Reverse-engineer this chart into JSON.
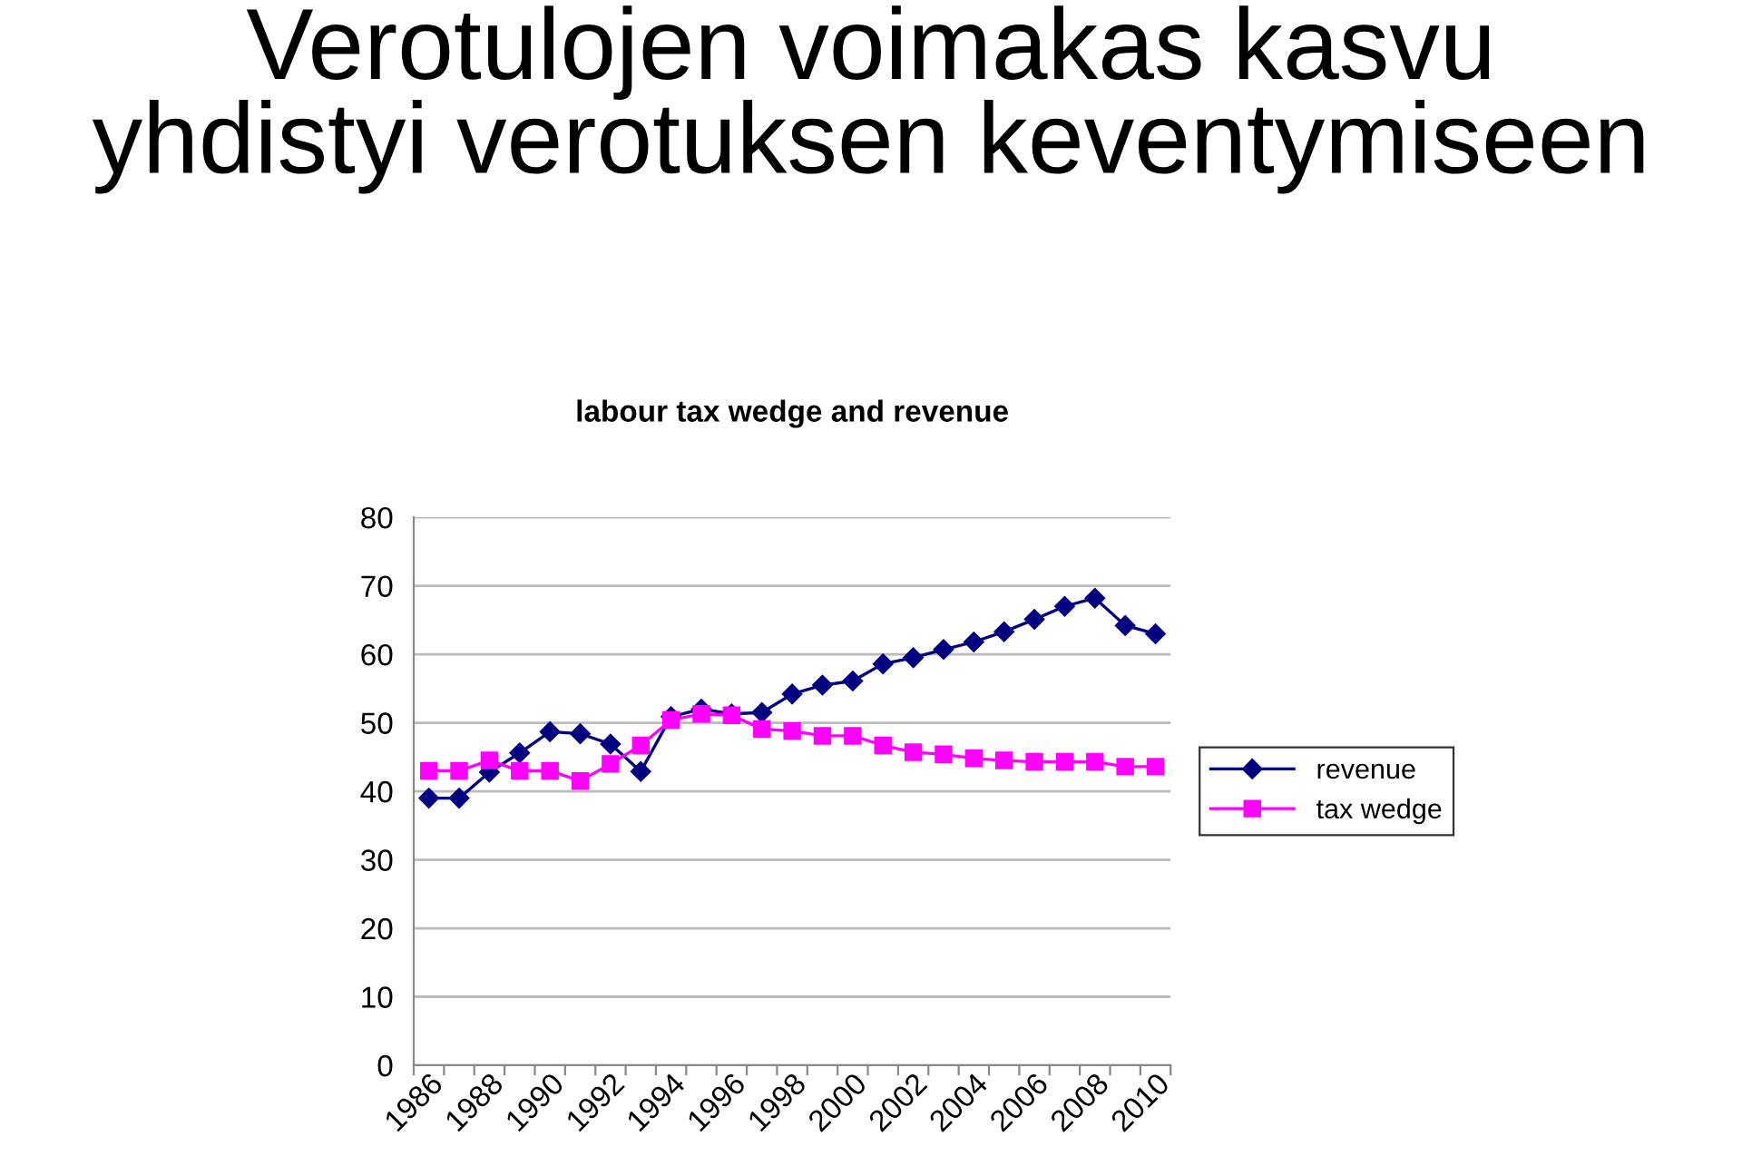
{
  "chart_data": {
    "type": "line",
    "title": "Verotulojen voimakas kasvu\nyhdistyi verotuksen keventymiseen",
    "subtitle": "labour tax wedge and revenue",
    "categories": [
      "1986",
      null,
      "1988",
      null,
      "1990",
      null,
      "1992",
      null,
      "1994",
      null,
      "1996",
      null,
      "1998",
      null,
      "2000",
      null,
      "2002",
      null,
      "2004",
      null,
      "2006",
      null,
      "2008",
      null,
      "2010"
    ],
    "series": [
      {
        "name": "revenue",
        "color": "#000080",
        "marker": "diamond",
        "values": [
          39.0,
          39.0,
          42.8,
          45.6,
          48.7,
          48.4,
          46.9,
          42.9,
          50.9,
          52.0,
          51.3,
          51.5,
          54.2,
          55.5,
          56.1,
          58.6,
          59.5,
          60.7,
          61.8,
          63.3,
          65.1,
          67.0,
          68.2,
          64.2,
          63.0
        ]
      },
      {
        "name": "tax wedge",
        "color": "#ff00ff",
        "marker": "square",
        "values": [
          43.0,
          43.0,
          44.5,
          43.0,
          43.0,
          41.5,
          44.0,
          46.7,
          50.4,
          51.3,
          51.1,
          49.1,
          48.8,
          48.1,
          48.1,
          46.7,
          45.7,
          45.4,
          44.8,
          44.5,
          44.3,
          44.3,
          44.3,
          43.6,
          43.6
        ]
      }
    ],
    "ylim": [
      0,
      80
    ],
    "yticks": [
      0,
      10,
      20,
      30,
      40,
      50,
      60,
      70,
      80
    ],
    "grid": "y",
    "legend": "right"
  }
}
